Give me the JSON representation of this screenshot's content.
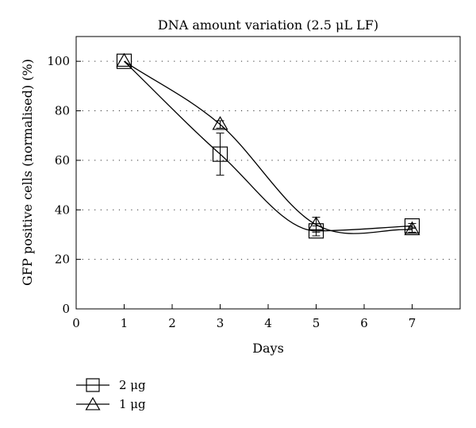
{
  "chart_data": {
    "type": "line",
    "title": "DNA amount variation (2.5 μL LF)",
    "xlabel": "Days",
    "ylabel": "GFP positive cells (normalised) (%)",
    "xlim": [
      0,
      8
    ],
    "ylim": [
      0,
      110
    ],
    "x_ticks": [
      0,
      1,
      2,
      3,
      4,
      5,
      6,
      7
    ],
    "y_ticks": [
      0,
      20,
      40,
      60,
      80,
      100
    ],
    "grid": "horizontal dotted",
    "legend_position": "bottom-left",
    "series": [
      {
        "name": "2 μg",
        "marker": "square",
        "x": [
          1,
          3,
          5,
          7
        ],
        "y": [
          100,
          62.5,
          31.5,
          33.5
        ],
        "error": [
          0,
          8.5,
          2,
          1
        ]
      },
      {
        "name": "1 μg",
        "marker": "triangle",
        "x": [
          1,
          3,
          5,
          7
        ],
        "y": [
          100,
          74.5,
          34,
          32
        ],
        "error": [
          0,
          1.5,
          3,
          1
        ]
      }
    ]
  }
}
